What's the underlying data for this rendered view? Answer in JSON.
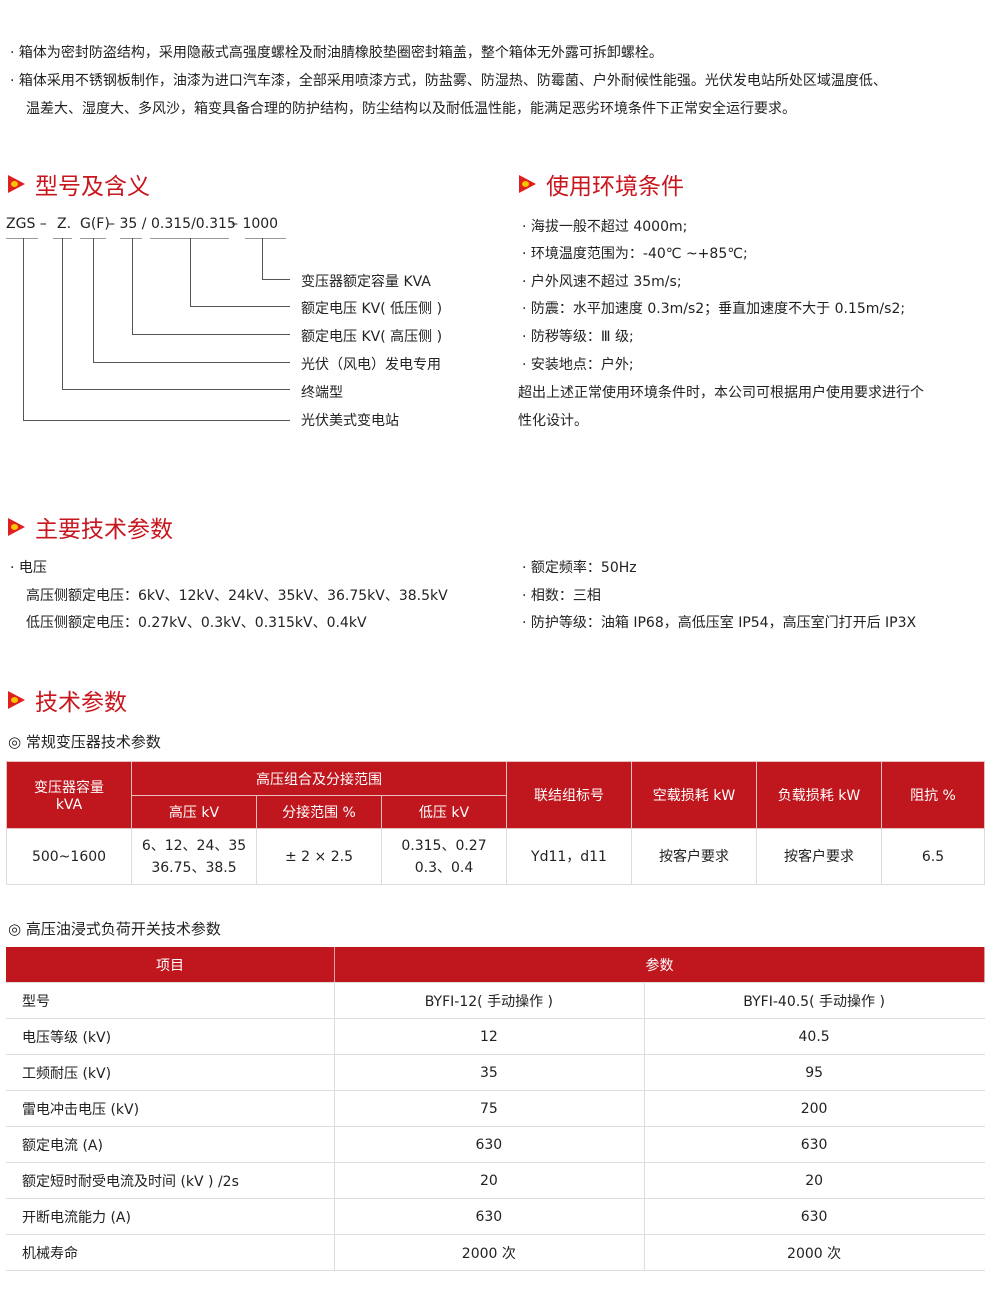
{
  "intro": [
    "箱体为密封防盗结构，采用隐蔽式高强度螺栓及耐油腈橡胶垫圈密封箱盖，整个箱体无外露可拆卸螺栓。",
    "箱体采用不锈钢板制作，油漆为进口汽车漆，全部采用喷漆方式，防盐雾、防湿热、防霉菌、户外耐候性能强。光伏发电站所处区域温度低、",
    "温差大、湿度大、多风沙，箱变具备合理的防护结构，防尘结构以及耐低温性能，能满足恶劣环境条件下正常安全运行要求。"
  ],
  "model": {
    "title": "型号及含义",
    "code": [
      "ZGS –",
      "Z.",
      "G(F)",
      "– 35 /",
      "0.315/0.315",
      "– 1000"
    ],
    "labels": [
      "变压器额定容量 KVA",
      "额定电压 KV( 低压侧 )",
      "额定电压 KV( 高压侧 )",
      "光伏（风电）发电专用",
      "终端型",
      "光伏美式变电站"
    ]
  },
  "env": {
    "title": "使用环境条件",
    "items": [
      "海拔一般不超过 4000m;",
      "环境温度范围为：-40℃ ~+85℃;",
      "户外风速不超过 35m/s;",
      "防震：水平加速度 0.3m/s2；垂直加速度不大于 0.15m/s2;",
      "防秽等级：Ⅲ 级;",
      "安装地点：户外;"
    ],
    "note": [
      "超出上述正常使用环境条件时，本公司可根据用户使用要求进行个",
      "性化设计。"
    ]
  },
  "main": {
    "title": "主要技术参数",
    "left": [
      "电压",
      "高压侧额定电压：6kV、12kV、24kV、35kV、36.75kV、38.5kV",
      "低压侧额定电压：0.27kV、0.3kV、0.315kV、0.4kV"
    ],
    "right": [
      "额定频率：50Hz",
      "相数：三相",
      "防护等级：油箱 IP68，高低压室 IP54，高压室门打开后 IP3X"
    ]
  },
  "tech": {
    "title": "技术参数",
    "sub1": "◎ 常规变压器技术参数",
    "t1": {
      "h": [
        "变压器容量",
        "kVA",
        "高压组合及分接范围",
        "高压 kV",
        "分接范围 %",
        "低压 kV",
        "联结组标号",
        "空载损耗 kW",
        "负载损耗 kW",
        "阻抗 %"
      ],
      "r": [
        "500~1600",
        "6、12、24、35",
        "36.75、38.5",
        "± 2 × 2.5",
        "0.315、0.27",
        "0.3、0.4",
        "Yd11，d11",
        "按客户要求",
        "按客户要求",
        "6.5"
      ]
    },
    "sub2": "◎ 高压油浸式负荷开关技术参数",
    "t2": {
      "h": [
        "项目",
        "参数"
      ],
      "rows": [
        [
          "型号",
          "BYFI-12( 手动操作 )",
          "BYFI-40.5( 手动操作 )"
        ],
        [
          "电压等级 (kV)",
          "12",
          "40.5"
        ],
        [
          "工频耐压 (kV)",
          "35",
          "95"
        ],
        [
          "雷电冲击电压 (kV)",
          "75",
          "200"
        ],
        [
          "额定电流 (A)",
          "630",
          "630"
        ],
        [
          "额定短时耐受电流及时间 (kV ) /2s",
          "20",
          "20"
        ],
        [
          "开断电流能力 (A)",
          "630",
          "630"
        ],
        [
          "机械寿命",
          "2000 次",
          "2000 次"
        ]
      ]
    }
  },
  "colors": {
    "accent": "#c0161e"
  }
}
